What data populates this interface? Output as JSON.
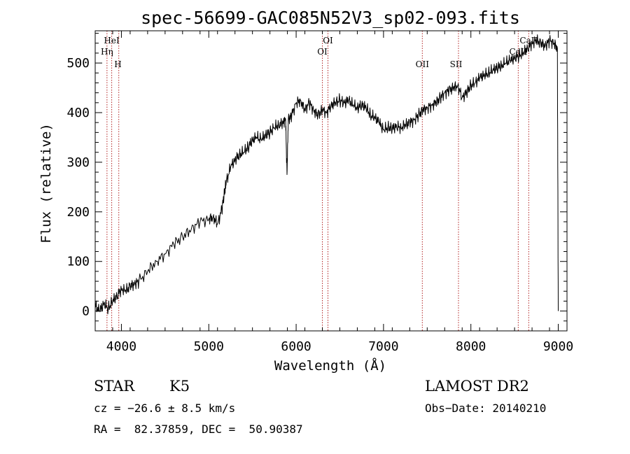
{
  "chart_data": {
    "type": "line",
    "title": "spec-56699-GAC085N52V3_sp02-093.fits",
    "xlabel": "Wavelength (Å)",
    "ylabel": "Flux (relative)",
    "xlim": [
      3700,
      9100
    ],
    "ylim": [
      -40,
      565
    ],
    "x_ticks": [
      4000,
      5000,
      6000,
      7000,
      8000,
      9000
    ],
    "y_ticks": [
      0,
      100,
      200,
      300,
      400,
      500
    ],
    "grid": false,
    "series": [
      {
        "x": [
          3700,
          3750,
          3800,
          3850,
          3900,
          3950,
          4000,
          4050,
          4100,
          4150,
          4200,
          4300,
          4400,
          4500,
          4600,
          4700,
          4800,
          4900,
          5000,
          5050,
          5100,
          5150,
          5180,
          5200,
          5250,
          5300,
          5350,
          5400,
          5450,
          5500,
          5550,
          5600,
          5650,
          5700,
          5750,
          5800,
          5850,
          5880,
          5895,
          5910,
          5950,
          6000,
          6050,
          6100,
          6150,
          6200,
          6250,
          6300,
          6350,
          6400,
          6450,
          6500,
          6550,
          6600,
          6650,
          6700,
          6750,
          6800,
          6850,
          6900,
          6950,
          7000,
          7050,
          7100,
          7150,
          7200,
          7250,
          7300,
          7350,
          7400,
          7450,
          7500,
          7550,
          7600,
          7650,
          7700,
          7750,
          7800,
          7850,
          7900,
          7950,
          8000,
          8050,
          8100,
          8150,
          8200,
          8250,
          8300,
          8350,
          8400,
          8450,
          8500,
          8550,
          8600,
          8650,
          8700,
          8750,
          8800,
          8850,
          8900,
          8950,
          8990,
          9000
        ],
        "values": [
          10,
          0,
          15,
          5,
          20,
          30,
          45,
          40,
          50,
          55,
          60,
          80,
          100,
          115,
          135,
          150,
          165,
          180,
          185,
          190,
          175,
          205,
          240,
          260,
          290,
          305,
          315,
          320,
          330,
          345,
          350,
          345,
          355,
          360,
          370,
          375,
          380,
          385,
          275,
          385,
          395,
          420,
          425,
          405,
          420,
          405,
          395,
          405,
          400,
          415,
          420,
          425,
          420,
          425,
          415,
          410,
          415,
          410,
          395,
          390,
          380,
          365,
          370,
          368,
          372,
          370,
          375,
          380,
          385,
          395,
          405,
          410,
          415,
          420,
          430,
          440,
          445,
          450,
          455,
          430,
          440,
          455,
          460,
          470,
          475,
          480,
          485,
          490,
          495,
          500,
          505,
          510,
          515,
          520,
          530,
          540,
          545,
          540,
          535,
          545,
          540,
          530,
          0
        ]
      }
    ],
    "annotations": [
      {
        "label": "HeI",
        "x": 3889,
        "row": 1,
        "label_x": 3889
      },
      {
        "label": "Hη",
        "x": 3835,
        "row": 2,
        "label_x": 3835
      },
      {
        "label": "H",
        "x": 3970,
        "row": 3,
        "label_x": 3960
      },
      {
        "label": "OI",
        "x": 6364,
        "row": 1,
        "label_x": 6364
      },
      {
        "label": "OI",
        "x": 6300,
        "row": 2,
        "label_x": 6300
      },
      {
        "label": "OII",
        "x": 7444,
        "row": 3,
        "label_x": 7444
      },
      {
        "label": "SII",
        "x": 7858,
        "row": 3,
        "label_x": 7830
      },
      {
        "label": "CaII",
        "x": 8662,
        "row": 1,
        "label_x": 8662
      },
      {
        "label": "CaII",
        "x": 8542,
        "row": 2,
        "label_x": 8542
      }
    ],
    "line_markers_x": [
      3835,
      3889,
      3970,
      6300,
      6364,
      7444,
      7858,
      8542,
      8662
    ],
    "colors": {
      "spectrum": "#000000",
      "line_markers": "#b22222",
      "axes": "#000000"
    }
  },
  "info": {
    "class": "STAR",
    "subclass": "K5",
    "survey": "LAMOST DR2",
    "redshift": "cz = −26.6 ± 8.5 km/s",
    "obs_date": "Obs−Date: 20140210",
    "coords": "RA =  82.37859, DEC =  50.90387"
  }
}
